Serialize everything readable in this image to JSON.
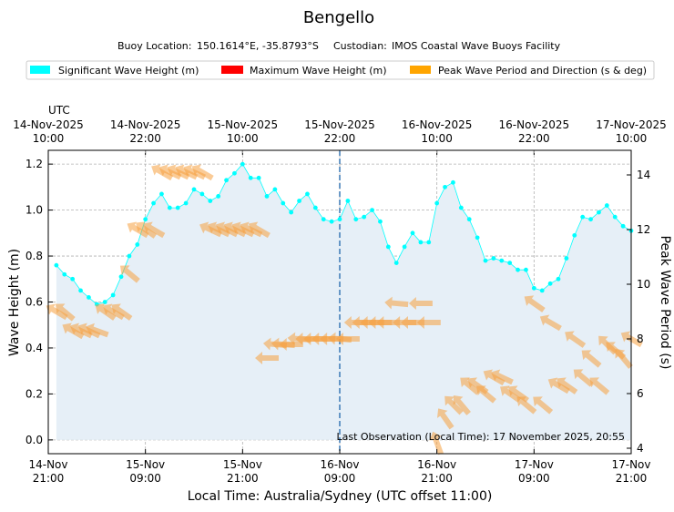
{
  "title": "Bengello",
  "subtitle": {
    "location_label": "Buoy Location:",
    "location": "150.1614°E, -35.8793°S",
    "custodian_label": "Custodian:",
    "custodian": "IMOS Coastal Wave Buoys Facility"
  },
  "legend": [
    {
      "label": "Significant Wave Height (m)",
      "color": "#00FFFF"
    },
    {
      "label": "Maximum Wave Height (m)",
      "color": "#FF0000"
    },
    {
      "label": "Peak Wave Period and Direction (s & deg)",
      "color": "#FFA500"
    }
  ],
  "top_axis": {
    "label": "UTC",
    "ticks": [
      {
        "date": "14-Nov-2025",
        "time": "10:00"
      },
      {
        "date": "14-Nov-2025",
        "time": "22:00"
      },
      {
        "date": "15-Nov-2025",
        "time": "10:00"
      },
      {
        "date": "15-Nov-2025",
        "time": "22:00"
      },
      {
        "date": "16-Nov-2025",
        "time": "10:00"
      },
      {
        "date": "16-Nov-2025",
        "time": "22:00"
      },
      {
        "date": "17-Nov-2025",
        "time": "10:00"
      }
    ]
  },
  "last_observation": "Last Observation (Local Time): 17 November 2025, 20:55",
  "chart_data": {
    "type": "line",
    "title": "Bengello",
    "xlabel": "Local Time: Australia/Sydney (UTC offset 11:00)",
    "ylabel": "Wave Height (m)",
    "y2label": "Peak Wave Period (s)",
    "x_range_hours": [
      0,
      72
    ],
    "ylim": [
      -0.06,
      1.26
    ],
    "y2lim": [
      3.8,
      14.9
    ],
    "yticks": [
      "0.0",
      "0.2",
      "0.4",
      "0.6",
      "0.8",
      "1.0",
      "1.2"
    ],
    "y2ticks": [
      "4",
      "6",
      "8",
      "10",
      "12",
      "14"
    ],
    "xticks": [
      {
        "date": "14-Nov",
        "time": "21:00"
      },
      {
        "date": "15-Nov",
        "time": "09:00"
      },
      {
        "date": "15-Nov",
        "time": "21:00"
      },
      {
        "date": "16-Nov",
        "time": "09:00"
      },
      {
        "date": "16-Nov",
        "time": "21:00"
      },
      {
        "date": "17-Nov",
        "time": "09:00"
      },
      {
        "date": "17-Nov",
        "time": "21:00"
      }
    ],
    "grid": true,
    "marker_x_hours": 36,
    "series": [
      {
        "name": "Significant Wave Height (m)",
        "color": "#00FFFF",
        "x_hours": [
          1,
          2,
          3,
          4,
          5,
          6,
          7,
          8,
          9,
          10,
          11,
          12,
          13,
          14,
          15,
          16,
          17,
          18,
          19,
          20,
          21,
          22,
          23,
          24,
          25,
          26,
          27,
          28,
          29,
          30,
          31,
          32,
          33,
          34,
          35,
          36,
          37,
          38,
          39,
          40,
          41,
          42,
          43,
          44,
          45,
          46,
          47,
          48,
          49,
          50,
          51,
          52,
          53,
          54,
          55,
          56,
          57,
          58,
          59,
          60,
          61,
          62,
          63,
          64,
          65,
          66,
          67,
          68,
          69,
          70,
          71,
          72
        ],
        "values": [
          0.76,
          0.72,
          0.7,
          0.65,
          0.62,
          0.59,
          0.6,
          0.63,
          0.71,
          0.8,
          0.85,
          0.96,
          1.03,
          1.07,
          1.01,
          1.01,
          1.03,
          1.09,
          1.07,
          1.04,
          1.06,
          1.13,
          1.16,
          1.2,
          1.14,
          1.14,
          1.06,
          1.09,
          1.03,
          0.99,
          1.04,
          1.07,
          1.01,
          0.96,
          0.95,
          0.96,
          1.04,
          0.96,
          0.97,
          1.0,
          0.95,
          0.84,
          0.77,
          0.84,
          0.9,
          0.86,
          0.86,
          1.03,
          1.1,
          1.12,
          1.01,
          0.96,
          0.88,
          0.78,
          0.79,
          0.78,
          0.77,
          0.74,
          0.74,
          0.66,
          0.65,
          0.68,
          0.7,
          0.79,
          0.89,
          0.97,
          0.96,
          0.99,
          1.02,
          0.97,
          0.93,
          0.91
        ]
      }
    ],
    "peak_period_arrows": [
      {
        "hour": 1,
        "period": 9.0,
        "direction_deg": 120
      },
      {
        "hour": 2,
        "period": 9.0,
        "direction_deg": 130
      },
      {
        "hour": 3,
        "period": 8.3,
        "direction_deg": 120
      },
      {
        "hour": 4,
        "period": 8.3,
        "direction_deg": 115
      },
      {
        "hour": 5,
        "period": 8.3,
        "direction_deg": 115
      },
      {
        "hour": 6,
        "period": 8.3,
        "direction_deg": 110
      },
      {
        "hour": 7,
        "period": 9.0,
        "direction_deg": 125
      },
      {
        "hour": 8,
        "period": 9.0,
        "direction_deg": 120
      },
      {
        "hour": 9,
        "period": 9.0,
        "direction_deg": 125
      },
      {
        "hour": 10,
        "period": 10.4,
        "direction_deg": 130
      },
      {
        "hour": 11,
        "period": 12.0,
        "direction_deg": 120
      },
      {
        "hour": 12,
        "period": 12.0,
        "direction_deg": 125
      },
      {
        "hour": 13,
        "period": 12.0,
        "direction_deg": 120
      },
      {
        "hour": 14,
        "period": 14.1,
        "direction_deg": 120
      },
      {
        "hour": 15,
        "period": 14.1,
        "direction_deg": 115
      },
      {
        "hour": 16,
        "period": 14.1,
        "direction_deg": 115
      },
      {
        "hour": 17,
        "period": 14.1,
        "direction_deg": 115
      },
      {
        "hour": 18,
        "period": 14.1,
        "direction_deg": 115
      },
      {
        "hour": 19,
        "period": 14.1,
        "direction_deg": 120
      },
      {
        "hour": 20,
        "period": 12.0,
        "direction_deg": 115
      },
      {
        "hour": 21,
        "period": 12.0,
        "direction_deg": 115
      },
      {
        "hour": 22,
        "period": 12.0,
        "direction_deg": 115
      },
      {
        "hour": 23,
        "period": 12.0,
        "direction_deg": 115
      },
      {
        "hour": 24,
        "period": 12.0,
        "direction_deg": 115
      },
      {
        "hour": 25,
        "period": 12.0,
        "direction_deg": 115
      },
      {
        "hour": 26,
        "period": 12.0,
        "direction_deg": 120
      },
      {
        "hour": 27,
        "period": 7.3,
        "direction_deg": 90
      },
      {
        "hour": 28,
        "period": 7.8,
        "direction_deg": 95
      },
      {
        "hour": 29,
        "period": 7.8,
        "direction_deg": 95
      },
      {
        "hour": 30,
        "period": 7.8,
        "direction_deg": 90
      },
      {
        "hour": 31,
        "period": 8.0,
        "direction_deg": 95
      },
      {
        "hour": 32,
        "period": 8.0,
        "direction_deg": 90
      },
      {
        "hour": 33,
        "period": 8.0,
        "direction_deg": 90
      },
      {
        "hour": 34,
        "period": 8.0,
        "direction_deg": 90
      },
      {
        "hour": 35,
        "period": 8.0,
        "direction_deg": 90
      },
      {
        "hour": 36,
        "period": 8.0,
        "direction_deg": 95
      },
      {
        "hour": 37,
        "period": 8.0,
        "direction_deg": 90
      },
      {
        "hour": 38,
        "period": 8.6,
        "direction_deg": 90
      },
      {
        "hour": 39,
        "period": 8.6,
        "direction_deg": 90
      },
      {
        "hour": 40,
        "period": 8.6,
        "direction_deg": 90
      },
      {
        "hour": 41,
        "period": 8.6,
        "direction_deg": 90
      },
      {
        "hour": 42,
        "period": 8.6,
        "direction_deg": 90
      },
      {
        "hour": 43,
        "period": 9.3,
        "direction_deg": 95
      },
      {
        "hour": 44,
        "period": 8.6,
        "direction_deg": 90
      },
      {
        "hour": 45,
        "period": 8.6,
        "direction_deg": 90
      },
      {
        "hour": 46,
        "period": 9.3,
        "direction_deg": 90
      },
      {
        "hour": 47,
        "period": 8.6,
        "direction_deg": 90
      },
      {
        "hour": 48,
        "period": 4.2,
        "direction_deg": 160
      },
      {
        "hour": 49,
        "period": 5.1,
        "direction_deg": 145
      },
      {
        "hour": 50,
        "period": 5.6,
        "direction_deg": 135
      },
      {
        "hour": 51,
        "period": 5.6,
        "direction_deg": 140
      },
      {
        "hour": 52,
        "period": 6.3,
        "direction_deg": 130
      },
      {
        "hour": 53,
        "period": 6.3,
        "direction_deg": 125
      },
      {
        "hour": 54,
        "period": 6.0,
        "direction_deg": 130
      },
      {
        "hour": 55,
        "period": 6.6,
        "direction_deg": 120
      },
      {
        "hour": 56,
        "period": 6.6,
        "direction_deg": 115
      },
      {
        "hour": 57,
        "period": 6.0,
        "direction_deg": 125
      },
      {
        "hour": 58,
        "period": 6.0,
        "direction_deg": 125
      },
      {
        "hour": 59,
        "period": 5.6,
        "direction_deg": 130
      },
      {
        "hour": 60,
        "period": 9.3,
        "direction_deg": 125
      },
      {
        "hour": 61,
        "period": 5.6,
        "direction_deg": 130
      },
      {
        "hour": 62,
        "period": 8.6,
        "direction_deg": 120
      },
      {
        "hour": 63,
        "period": 6.3,
        "direction_deg": 120
      },
      {
        "hour": 64,
        "period": 6.3,
        "direction_deg": 125
      },
      {
        "hour": 65,
        "period": 8.0,
        "direction_deg": 125
      },
      {
        "hour": 66,
        "period": 6.6,
        "direction_deg": 130
      },
      {
        "hour": 67,
        "period": 7.3,
        "direction_deg": 130
      },
      {
        "hour": 68,
        "period": 6.3,
        "direction_deg": 130
      },
      {
        "hour": 69,
        "period": 7.8,
        "direction_deg": 135
      },
      {
        "hour": 70,
        "period": 7.6,
        "direction_deg": 130
      },
      {
        "hour": 71,
        "period": 7.3,
        "direction_deg": 140
      },
      {
        "hour": 72,
        "period": 8.0,
        "direction_deg": 120
      }
    ]
  }
}
